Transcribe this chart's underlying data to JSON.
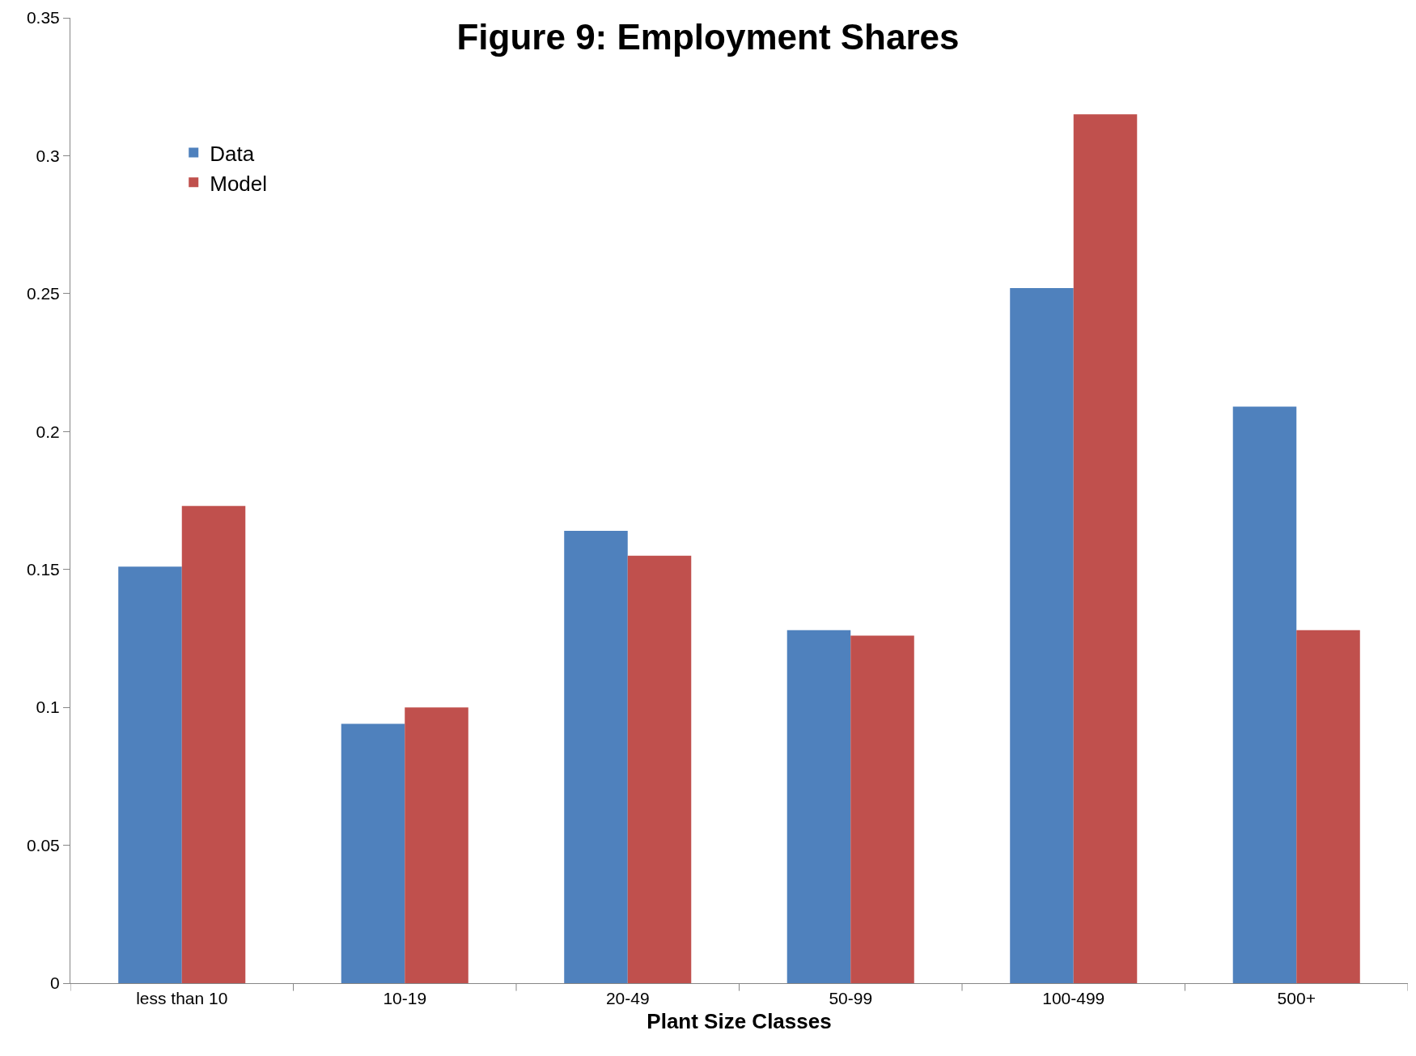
{
  "chart_data": {
    "type": "bar",
    "title": "Figure 9: Employment Shares",
    "xlabel": "Plant Size Classes",
    "categories": [
      "less than 10",
      "10-19",
      "20-49",
      "50-99",
      "100-499",
      "500+"
    ],
    "series": [
      {
        "name": "Data",
        "color": "#4f81bd",
        "values": [
          0.151,
          0.094,
          0.164,
          0.128,
          0.252,
          0.209
        ]
      },
      {
        "name": "Model",
        "color": "#c0504d",
        "values": [
          0.173,
          0.1,
          0.155,
          0.126,
          0.315,
          0.128
        ]
      }
    ],
    "ylim": [
      0,
      0.35
    ],
    "yticks": [
      0,
      0.05,
      0.1,
      0.15,
      0.2,
      0.25,
      0.3,
      0.35
    ],
    "grid": false,
    "legend": "top left"
  }
}
